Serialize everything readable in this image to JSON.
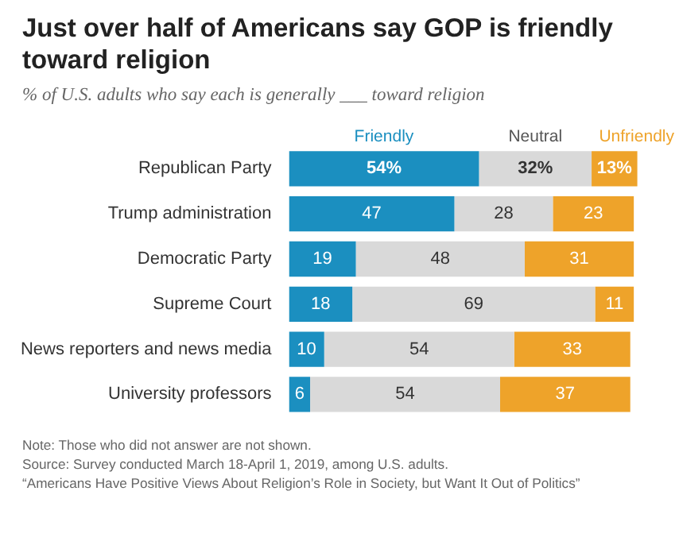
{
  "chart_data": {
    "type": "bar",
    "orientation": "horizontal",
    "stacked": true,
    "title": "Just over half of Americans say GOP is friendly toward religion",
    "subtitle": "% of U.S. adults who say each is generally ___ toward religion",
    "categories": [
      "Republican Party",
      "Trump administration",
      "Democratic Party",
      "Supreme Court",
      "News reporters and news media",
      "University professors"
    ],
    "series": [
      {
        "name": "Friendly",
        "color": "#1b8fc0",
        "values": [
          54,
          47,
          19,
          18,
          10,
          6
        ],
        "value_labels": [
          "54%",
          "47",
          "19",
          "18",
          "10",
          "6"
        ]
      },
      {
        "name": "Neutral",
        "color": "#d9d9d9",
        "values": [
          32,
          28,
          48,
          69,
          54,
          54
        ],
        "value_labels": [
          "32%",
          "28",
          "48",
          "69",
          "54",
          "54"
        ]
      },
      {
        "name": "Unfriendly",
        "color": "#eea32a",
        "values": [
          13,
          23,
          31,
          11,
          33,
          37
        ],
        "value_labels": [
          "13%",
          "23",
          "31",
          "11",
          "33",
          "37"
        ]
      }
    ],
    "xlim": [
      0,
      100
    ],
    "tick_labels": "y",
    "legend": false,
    "annotations": [
      "Note: Those who did not answer are not shown.",
      "Source: Survey conducted March 18-April 1, 2019, among U.S. adults.",
      "“Americans Have Positive Views About Religion’s Role in Society, but Want It Out of Politics”"
    ]
  }
}
